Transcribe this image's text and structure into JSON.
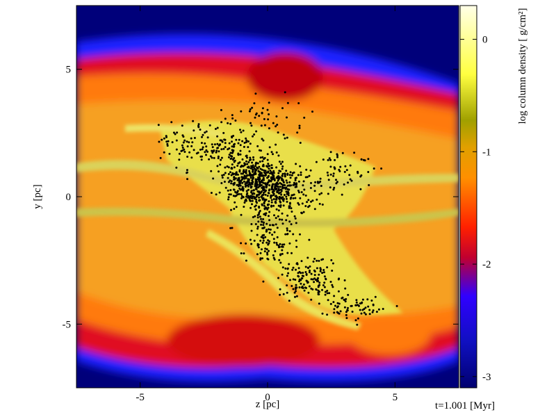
{
  "chart_data": {
    "type": "heatmap",
    "title": "",
    "xlabel": "z [pc]",
    "ylabel": "y [pc]",
    "xlim": [
      -7.5,
      7.5
    ],
    "ylim": [
      -7.5,
      7.5
    ],
    "x_ticks": [
      -5,
      0,
      5
    ],
    "y_ticks": [
      -5,
      0,
      5
    ],
    "x_tick_labels": [
      "-5",
      "0",
      "5"
    ],
    "y_tick_labels": [
      "-5",
      "0",
      "5"
    ],
    "colorbar": {
      "label": "log column density [ g/cm²]",
      "range": [
        -3.1,
        0.3
      ],
      "ticks": [
        0,
        -1,
        -2,
        -3
      ],
      "tick_labels": [
        "0",
        "-1",
        "-2",
        "-3"
      ],
      "colormap": [
        "#000070",
        "#0000ff",
        "#ff0000",
        "#ff8800",
        "#e6a000",
        "#a0a000",
        "#ffff40",
        "#ffffe6"
      ]
    },
    "annotation": "t=1.001 [Myr]",
    "field_description_colors": {
      "background": "#000080",
      "low": "#0000ff",
      "mid": "#ff2000",
      "high": "#ffa020",
      "filament": "#e0e060"
    },
    "grid": false,
    "legend": "none"
  }
}
